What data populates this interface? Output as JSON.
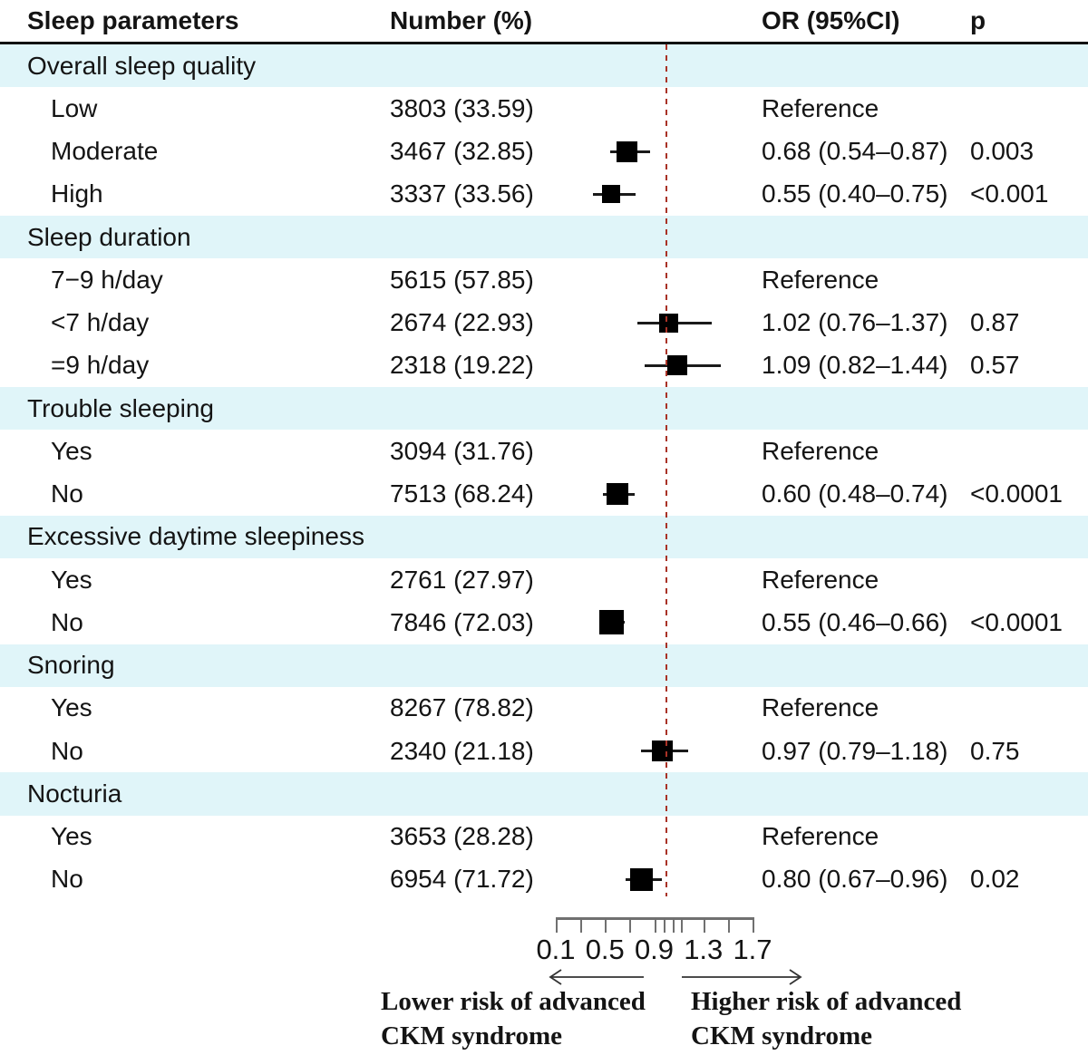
{
  "header": {
    "col_parameter": "Sleep parameters",
    "col_number": "Number (%)",
    "col_or": "OR (95%CI)",
    "col_p": "p"
  },
  "colors": {
    "band": "#e0f5f9",
    "ref_line": "#a93226",
    "marker": "#000000",
    "ci": "#1a1a1a",
    "axis": "#707070"
  },
  "axis": {
    "min": 0.1,
    "max": 1.7,
    "ref_value": 1.0,
    "ticks": [
      0.1,
      0.3,
      0.5,
      0.7,
      0.9,
      0.98,
      1.05,
      1.12,
      1.3,
      1.5,
      1.7
    ],
    "tick_labels": [
      {
        "text": "0.1",
        "value": 0.1
      },
      {
        "text": "0.5",
        "value": 0.5
      },
      {
        "text": "0.9",
        "value": 0.9
      },
      {
        "text": "1.3",
        "value": 1.3
      },
      {
        "text": "1.7",
        "value": 1.7
      }
    ]
  },
  "footer": {
    "left_line1": "Lower risk of advanced",
    "left_line2": "CKM syndrome",
    "right_line1": "Higher risk of advanced",
    "right_line2": "CKM syndrome"
  },
  "chart_data": {
    "type": "forest",
    "or_axis": {
      "min": 0.1,
      "max": 1.7,
      "reference_line": 1.0,
      "tick_label_values": [
        0.1,
        0.5,
        0.9,
        1.3,
        1.7
      ]
    },
    "rows": [
      {
        "kind": "section",
        "label": "Overall sleep quality"
      },
      {
        "kind": "item",
        "label": "Low",
        "number": "3803 (33.59)",
        "or_text": "Reference",
        "p": ""
      },
      {
        "kind": "item",
        "label": "Moderate",
        "number": "3467 (32.85)",
        "or": 0.68,
        "ci_low": 0.54,
        "ci_high": 0.87,
        "or_text": "0.68 (0.54–0.87)",
        "p": "0.003",
        "marker_size": 23
      },
      {
        "kind": "item",
        "label": "High",
        "number": "3337 (33.56)",
        "or": 0.55,
        "ci_low": 0.4,
        "ci_high": 0.75,
        "or_text": "0.55 (0.40–0.75)",
        "p": "<0.001",
        "marker_size": 20
      },
      {
        "kind": "section",
        "label": "Sleep duration"
      },
      {
        "kind": "item",
        "label": "7−9 h/day",
        "number": "5615 (57.85)",
        "or_text": "Reference",
        "p": ""
      },
      {
        "kind": "item",
        "label": "<7 h/day",
        "number": "2674 (22.93)",
        "or": 1.02,
        "ci_low": 0.76,
        "ci_high": 1.37,
        "or_text": "1.02 (0.76–1.37)",
        "p": "0.87",
        "marker_size": 21
      },
      {
        "kind": "item",
        "label": "=9 h/day",
        "number": "2318 (19.22)",
        "or": 1.09,
        "ci_low": 0.82,
        "ci_high": 1.44,
        "or_text": "1.09 (0.82–1.44)",
        "p": "0.57",
        "marker_size": 22
      },
      {
        "kind": "section",
        "label": "Trouble sleeping"
      },
      {
        "kind": "item",
        "label": "Yes",
        "number": "3094 (31.76)",
        "or_text": "Reference",
        "p": ""
      },
      {
        "kind": "item",
        "label": "No",
        "number": "7513 (68.24)",
        "or": 0.6,
        "ci_low": 0.48,
        "ci_high": 0.74,
        "or_text": "0.60 (0.48–0.74)",
        "p": "<0.0001",
        "marker_size": 24
      },
      {
        "kind": "section",
        "label": "Excessive daytime sleepiness"
      },
      {
        "kind": "item",
        "label": "Yes",
        "number": "2761 (27.97)",
        "or_text": "Reference",
        "p": ""
      },
      {
        "kind": "item",
        "label": "No",
        "number": "7846 (72.03)",
        "or": 0.55,
        "ci_low": 0.46,
        "ci_high": 0.66,
        "or_text": "0.55 (0.46–0.66)",
        "p": "<0.0001",
        "marker_size": 27
      },
      {
        "kind": "section",
        "label": "Snoring"
      },
      {
        "kind": "item",
        "label": "Yes",
        "number": "8267 (78.82)",
        "or_text": "Reference",
        "p": ""
      },
      {
        "kind": "item",
        "label": "No",
        "number": "2340 (21.18)",
        "or": 0.97,
        "ci_low": 0.79,
        "ci_high": 1.18,
        "or_text": "0.97 (0.79–1.18)",
        "p": "0.75",
        "marker_size": 23
      },
      {
        "kind": "section",
        "label": "Nocturia"
      },
      {
        "kind": "item",
        "label": "Yes",
        "number": "3653 (28.28)",
        "or_text": "Reference",
        "p": ""
      },
      {
        "kind": "item",
        "label": "No",
        "number": "6954 (71.72)",
        "or": 0.8,
        "ci_low": 0.67,
        "ci_high": 0.96,
        "or_text": "0.80 (0.67–0.96)",
        "p": "0.02",
        "marker_size": 25
      }
    ]
  }
}
